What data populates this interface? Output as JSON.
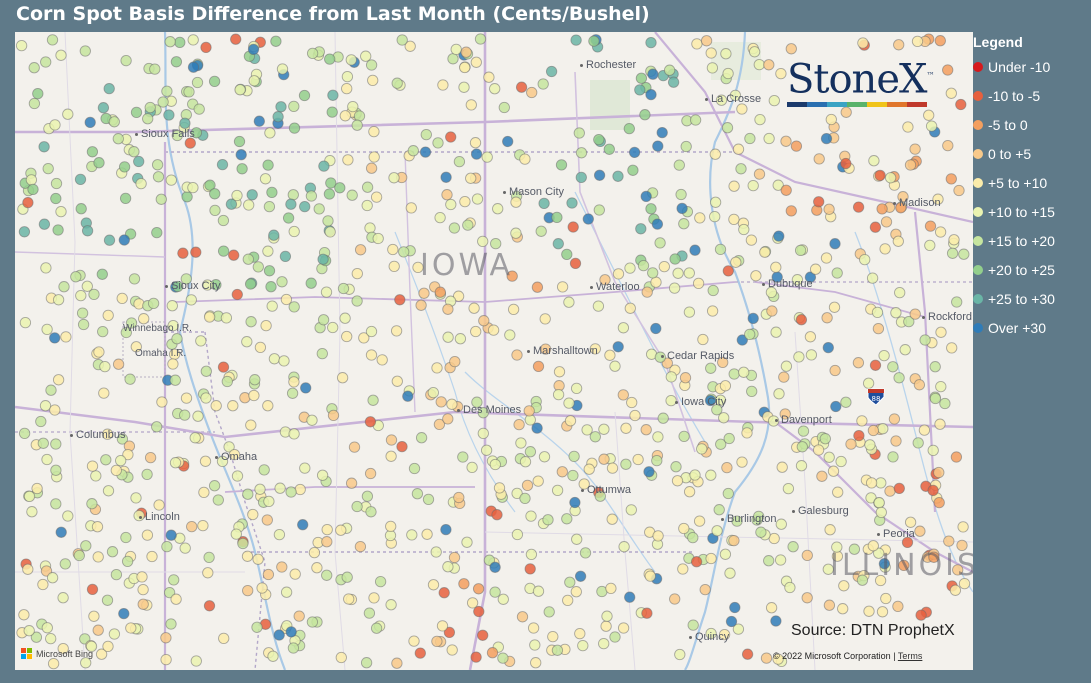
{
  "title": "Corn Spot Basis Difference from Last Month (Cents/Bushel)",
  "legend": {
    "title": "Legend",
    "items": [
      {
        "label": "Under -10",
        "color": "#d7191c"
      },
      {
        "label": "-10 to -5",
        "color": "#e6603e"
      },
      {
        "label": "-5 to 0",
        "color": "#f39f5f"
      },
      {
        "label": "0 to +5",
        "color": "#f8c98a"
      },
      {
        "label": "+5 to +10",
        "color": "#fbecaa"
      },
      {
        "label": "+10 to +15",
        "color": "#eaf3b0"
      },
      {
        "label": "+15 to +20",
        "color": "#c6e59f"
      },
      {
        "label": "+20 to +25",
        "color": "#93cf8c"
      },
      {
        "label": "+25 to +30",
        "color": "#6ab5a6"
      },
      {
        "label": "Over +30",
        "color": "#2f7cb8"
      }
    ]
  },
  "map": {
    "states": {
      "iowa": "IOWA",
      "illinois": "ILLINOIS"
    },
    "cities": [
      "Rochester",
      "La Crosse",
      "Madison",
      "Mason City",
      "Sioux City",
      "Waterloo",
      "Dubuque",
      "Winnebago I.R.",
      "Omaha I.R.",
      "Rockford",
      "Marshalltown",
      "Cedar Rapids",
      "Iowa City",
      "Des Moines",
      "Davenport",
      "Columbus",
      "Omaha",
      "Ottumwa",
      "Galesburg",
      "Burlington",
      "Peoria",
      "Lincoln",
      "Quincy",
      "Sioux Falls"
    ],
    "highway_shield": "88"
  },
  "logo": {
    "text": "StoneX",
    "tm": "™",
    "bar_colors": [
      "#1b3a6b",
      "#2a6fb0",
      "#3aa3c4",
      "#59b36b",
      "#f0c419",
      "#e0762b",
      "#c0392b"
    ]
  },
  "source": "Source: DTN ProphetX",
  "attribution": {
    "bing": "Microsoft Bing",
    "copyright": "© 2022 Microsoft Corporation",
    "terms": "Terms"
  }
}
